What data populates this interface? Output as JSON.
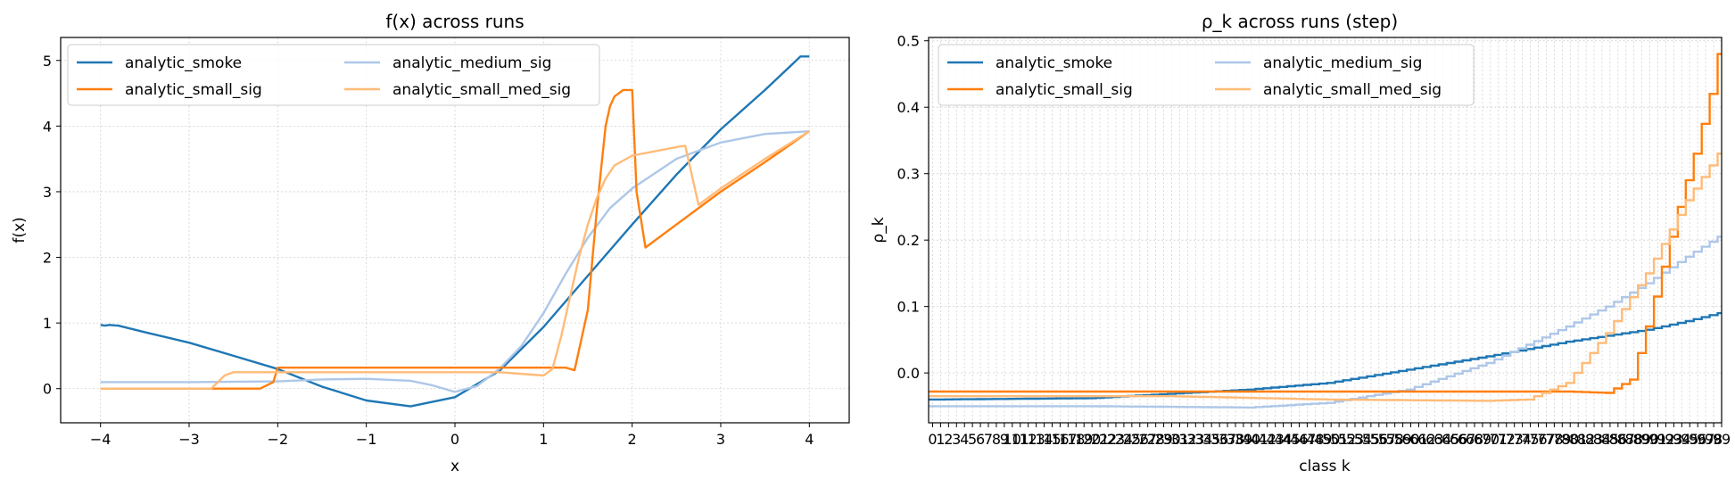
{
  "chart_data": [
    {
      "type": "line",
      "title": "f(x) across runs",
      "xlabel": "x",
      "ylabel": "f(x)",
      "xlim": [
        -4.45,
        4.45
      ],
      "ylim": [
        -0.52,
        5.35
      ],
      "xticks": [
        -4,
        -3,
        -2,
        -1,
        0,
        1,
        2,
        3,
        4
      ],
      "xtick_labels": [
        "−4",
        "−3",
        "−2",
        "−1",
        "0",
        "1",
        "2",
        "3",
        "4"
      ],
      "yticks": [
        0,
        1,
        2,
        3,
        4,
        5
      ],
      "ytick_labels": [
        "0",
        "1",
        "2",
        "3",
        "4",
        "5"
      ],
      "grid": true,
      "legend": "upper left, 2 columns",
      "series": [
        {
          "name": "analytic_smoke",
          "color": "#1f77b4",
          "x": [
            -4,
            -3.95,
            -3.9,
            -3.8,
            -3.5,
            -3,
            -2.5,
            -2,
            -1.5,
            -1,
            -0.5,
            0,
            0.5,
            1,
            1.5,
            2,
            2.5,
            3,
            3.5,
            3.9,
            4
          ],
          "y": [
            0.97,
            0.96,
            0.97,
            0.96,
            0.86,
            0.7,
            0.5,
            0.3,
            0.03,
            -0.18,
            -0.27,
            -0.13,
            0.27,
            0.94,
            1.72,
            2.5,
            3.26,
            3.95,
            4.55,
            5.06,
            5.06
          ]
        },
        {
          "name": "analytic_medium_sig",
          "color": "#aec7e8",
          "x": [
            -4,
            -3,
            -2,
            -1.5,
            -1,
            -0.5,
            -0.25,
            0,
            0.25,
            0.5,
            0.75,
            1,
            1.25,
            1.5,
            1.75,
            2,
            2.5,
            3,
            3.5,
            4
          ],
          "y": [
            0.1,
            0.1,
            0.11,
            0.14,
            0.15,
            0.12,
            0.05,
            -0.05,
            0.04,
            0.3,
            0.65,
            1.15,
            1.75,
            2.3,
            2.75,
            3.05,
            3.5,
            3.75,
            3.88,
            3.92
          ]
        },
        {
          "name": "analytic_small_sig",
          "color": "#ff7f0e",
          "x": [
            -4,
            -2.2,
            -2.05,
            -2,
            -1.5,
            0,
            1,
            1.25,
            1.35,
            1.5,
            1.6,
            1.7,
            1.75,
            1.8,
            1.9,
            2,
            2.05,
            2.15,
            2.5,
            3,
            3.5,
            4
          ],
          "y": [
            0,
            0,
            0.1,
            0.32,
            0.32,
            0.32,
            0.32,
            0.32,
            0.28,
            1.2,
            2.7,
            4,
            4.3,
            4.45,
            4.55,
            4.55,
            3,
            2.15,
            2.5,
            3,
            3.45,
            3.92
          ]
        },
        {
          "name": "analytic_small_med_sig",
          "color": "#ffbb78",
          "x": [
            -4,
            -2.75,
            -2.6,
            -2.5,
            -2,
            -1,
            0,
            0.5,
            0.8,
            1,
            1.1,
            1.2,
            1.3,
            1.4,
            1.5,
            1.6,
            1.7,
            1.8,
            2,
            2.5,
            2.6,
            2.75,
            3,
            3.5,
            4
          ],
          "y": [
            0,
            0,
            0.2,
            0.25,
            0.25,
            0.25,
            0.25,
            0.25,
            0.22,
            0.2,
            0.3,
            0.8,
            1.4,
            2,
            2.5,
            2.9,
            3.2,
            3.4,
            3.55,
            3.68,
            3.7,
            2.8,
            3.05,
            3.5,
            3.92
          ]
        }
      ]
    },
    {
      "type": "line",
      "step": true,
      "title": "ρ_k across runs (step)",
      "xlabel": "class k",
      "ylabel": "ρ_k",
      "xlim": [
        -0.5,
        99
      ],
      "ylim": [
        -0.075,
        0.505
      ],
      "n_classes": 100,
      "yticks": [
        0,
        0.1,
        0.2,
        0.3,
        0.4,
        0.5
      ],
      "ytick_labels": [
        "0.0",
        "0.1",
        "0.2",
        "0.3",
        "0.4",
        "0.5"
      ],
      "grid": true,
      "legend": "upper left, 2 columns",
      "series": [
        {
          "name": "analytic_smoke",
          "color": "#1f77b4",
          "anchors_k": [
            0,
            20,
            40,
            50,
            60,
            70,
            80,
            90,
            95,
            99
          ],
          "anchors_y": [
            -0.04,
            -0.038,
            -0.025,
            -0.015,
            0.005,
            0.025,
            0.047,
            0.065,
            0.078,
            0.09
          ]
        },
        {
          "name": "analytic_medium_sig",
          "color": "#aec7e8",
          "anchors_k": [
            0,
            20,
            40,
            50,
            60,
            70,
            80,
            85,
            90,
            95,
            99
          ],
          "anchors_y": [
            -0.05,
            -0.05,
            -0.052,
            -0.045,
            -0.025,
            0.015,
            0.07,
            0.1,
            0.135,
            0.175,
            0.205
          ]
        },
        {
          "name": "analytic_small_sig",
          "color": "#ff7f0e",
          "anchors_k": [
            0,
            50,
            80,
            85,
            88,
            90,
            92,
            94,
            96,
            98,
            99
          ],
          "anchors_y": [
            -0.028,
            -0.028,
            -0.028,
            -0.03,
            -0.01,
            0.07,
            0.16,
            0.25,
            0.33,
            0.42,
            0.48
          ]
        },
        {
          "name": "analytic_small_med_sig",
          "color": "#ffbb78",
          "anchors_k": [
            0,
            30,
            50,
            70,
            75,
            80,
            85,
            90,
            95,
            99
          ],
          "anchors_y": [
            -0.035,
            -0.035,
            -0.04,
            -0.042,
            -0.04,
            -0.015,
            0.06,
            0.15,
            0.26,
            0.33
          ]
        }
      ]
    }
  ]
}
